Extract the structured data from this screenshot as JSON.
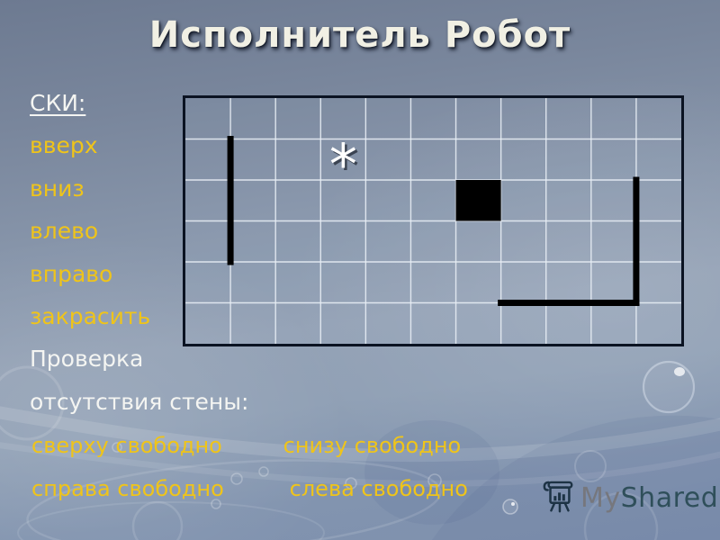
{
  "slide": {
    "title": "Исполнитель Робот"
  },
  "ski": {
    "heading": "СКИ:",
    "commands": [
      "вверх",
      "вниз",
      "влево",
      "вправо",
      "закрасить"
    ],
    "check_title_lines": [
      "Проверка",
      "отсутствия стены:"
    ],
    "checks": [
      [
        "сверху свободно",
        "снизу свободно"
      ],
      [
        "справа свободно",
        "слева свободно"
      ]
    ]
  },
  "field": {
    "cols": 11,
    "rows": 6,
    "star_cell": {
      "row": 2,
      "col": 4,
      "symbol": "*"
    },
    "painted_cell": {
      "row": 3,
      "col": 7
    },
    "walls": [
      {
        "type": "vertical",
        "after_col": 1,
        "from_row": 2,
        "to_row": 4
      },
      {
        "type": "vertical",
        "after_col": 10,
        "from_row": 3,
        "to_row": 5
      },
      {
        "type": "horizontal",
        "below_row": 5,
        "from_col": 8,
        "to_col": 10
      }
    ]
  },
  "logo": {
    "my": "My",
    "shared": "Shared"
  },
  "colors": {
    "accent_yellow": "#EFC41A",
    "text_white": "#F4F5F2",
    "title_cream": "#F1F0E4",
    "wall_black": "#000000",
    "grid_line": "#E8EEF5",
    "field_border": "#0B1322",
    "logo_my_gray": "#76777D",
    "logo_shared_teal": "#2F4F5A",
    "logo_icon_navy": "#1D3345"
  }
}
